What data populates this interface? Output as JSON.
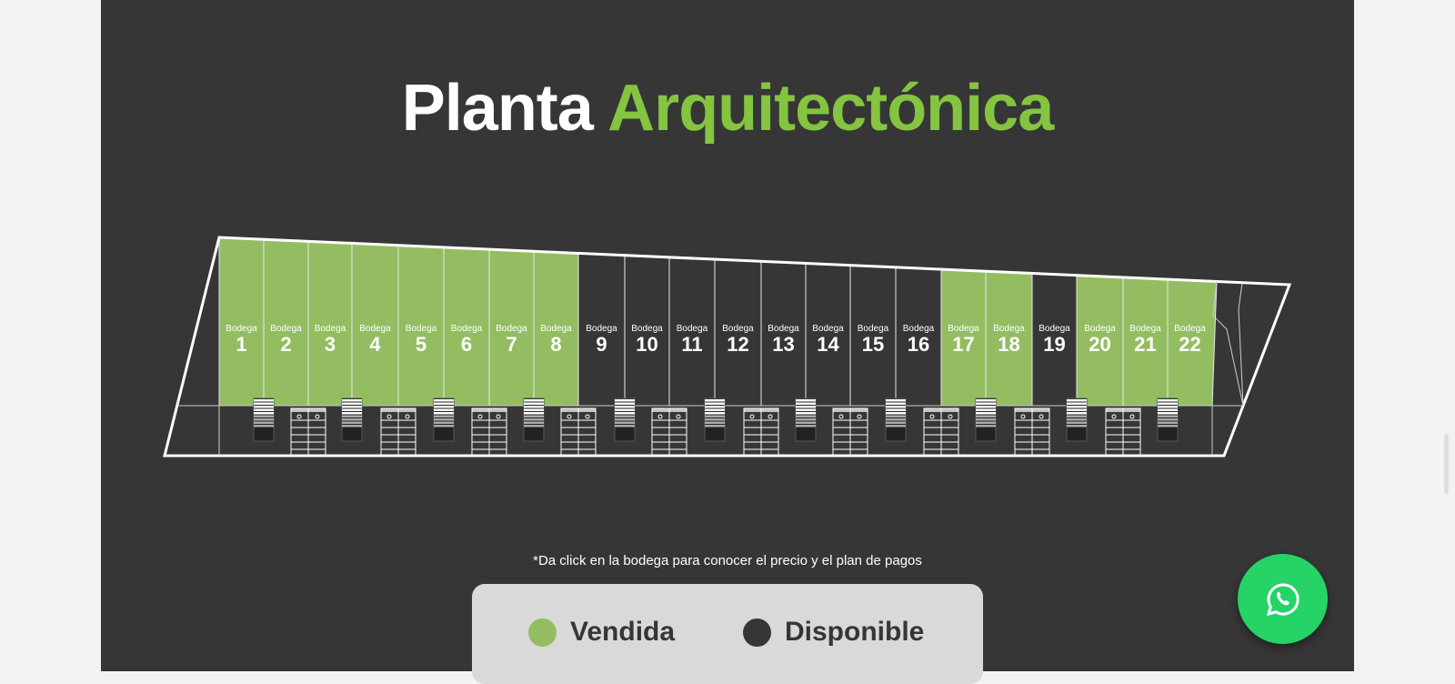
{
  "title": {
    "part1": "Planta",
    "part2": "Arquitectónica"
  },
  "bodega_label": "Bodega",
  "colors": {
    "sold": "#94bd62",
    "available": "#363636",
    "accent": "#84c441",
    "whatsapp": "#25d366"
  },
  "bodegas": [
    {
      "number": "1",
      "status": "sold"
    },
    {
      "number": "2",
      "status": "sold"
    },
    {
      "number": "3",
      "status": "sold"
    },
    {
      "number": "4",
      "status": "sold"
    },
    {
      "number": "5",
      "status": "sold"
    },
    {
      "number": "6",
      "status": "sold"
    },
    {
      "number": "7",
      "status": "sold"
    },
    {
      "number": "8",
      "status": "sold"
    },
    {
      "number": "9",
      "status": "available"
    },
    {
      "number": "10",
      "status": "available"
    },
    {
      "number": "11",
      "status": "available"
    },
    {
      "number": "12",
      "status": "available"
    },
    {
      "number": "13",
      "status": "available"
    },
    {
      "number": "14",
      "status": "available"
    },
    {
      "number": "15",
      "status": "available"
    },
    {
      "number": "16",
      "status": "available"
    },
    {
      "number": "17",
      "status": "sold"
    },
    {
      "number": "18",
      "status": "sold"
    },
    {
      "number": "19",
      "status": "available"
    },
    {
      "number": "20",
      "status": "sold"
    },
    {
      "number": "21",
      "status": "sold"
    },
    {
      "number": "22",
      "status": "sold"
    }
  ],
  "note": "*Da click en la bodega para conocer el precio y el plan de pagos",
  "legend": {
    "sold": "Vendida",
    "available": "Disponible"
  },
  "whatsapp_icon": "whatsapp-icon"
}
